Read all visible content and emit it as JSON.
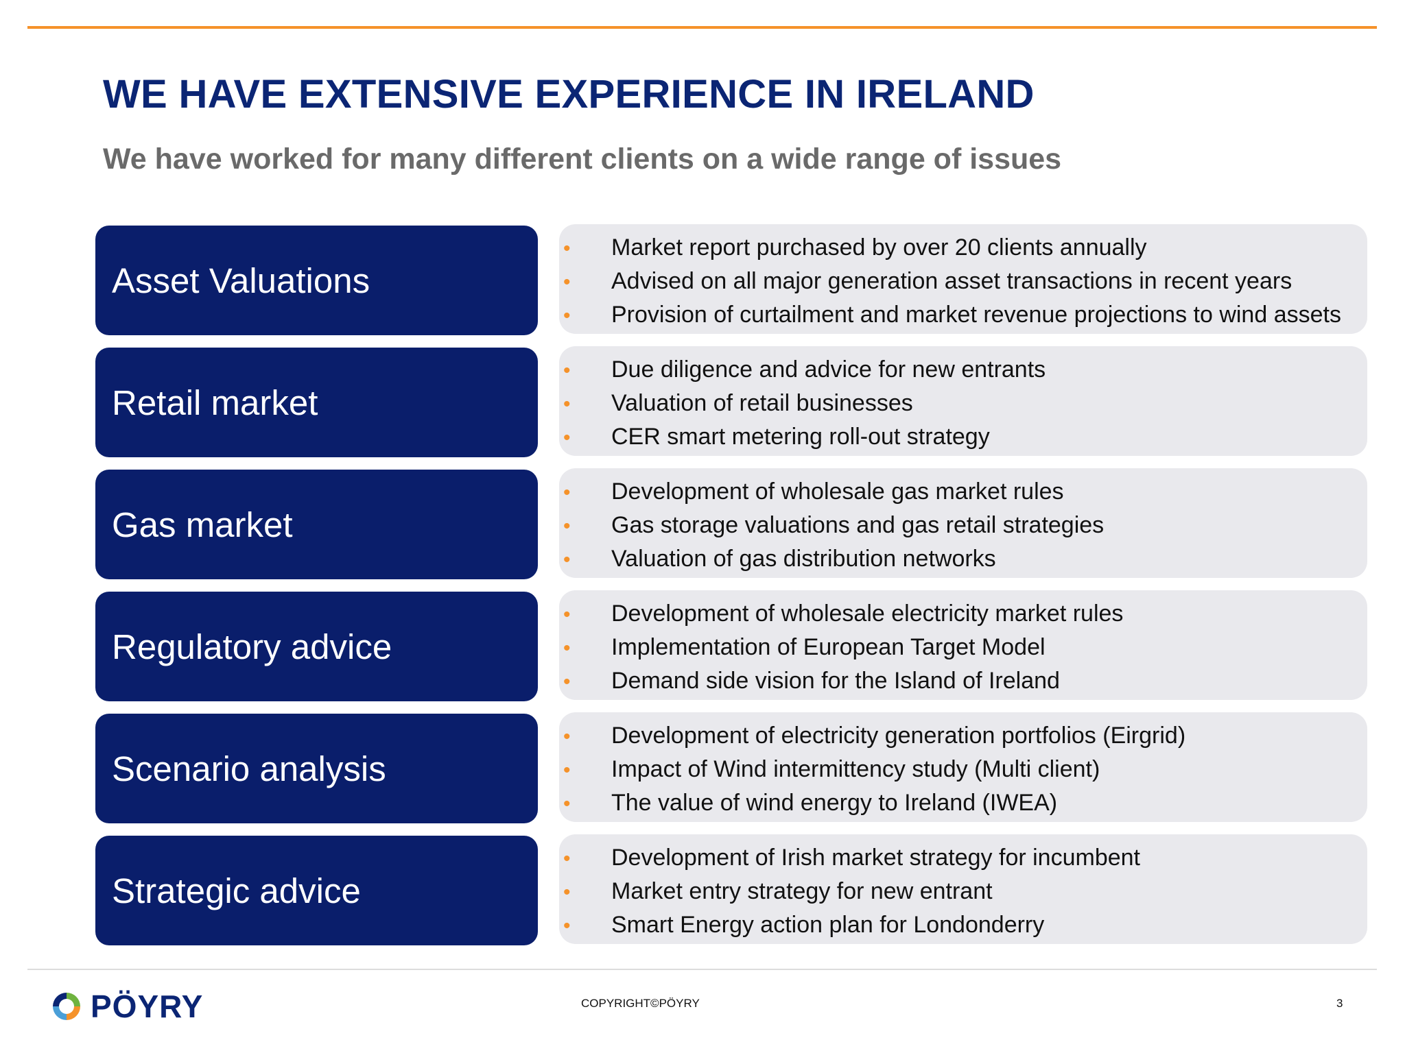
{
  "header": {
    "title": "WE HAVE EXTENSIVE EXPERIENCE IN IRELAND",
    "subtitle": "We have worked for many different clients on a wide range of issues"
  },
  "rows": [
    {
      "category": "Asset Valuations",
      "bullets": [
        "Market report purchased by over 20 clients annually",
        "Advised on all major generation asset transactions in recent years",
        "Provision of curtailment and market revenue projections to wind assets"
      ]
    },
    {
      "category": "Retail market",
      "bullets": [
        "Due diligence and advice for new entrants",
        "Valuation of retail businesses",
        "CER smart metering roll-out strategy"
      ]
    },
    {
      "category": "Gas market",
      "bullets": [
        "Development of wholesale gas market rules",
        "Gas storage valuations and gas retail strategies",
        "Valuation of gas distribution networks"
      ]
    },
    {
      "category": "Regulatory advice",
      "bullets": [
        "Development of wholesale electricity market rules",
        "Implementation of European Target Model",
        "Demand side vision for the Island of Ireland"
      ]
    },
    {
      "category": "Scenario analysis",
      "bullets": [
        "Development of electricity generation portfolios (Eirgrid)",
        "Impact of Wind intermittency study (Multi client)",
        "The value of wind energy to Ireland (IWEA)"
      ]
    },
    {
      "category": "Strategic advice",
      "bullets": [
        "Development of Irish market strategy for incumbent",
        "Market entry strategy for new entrant",
        "Smart Energy action plan for Londonderry"
      ]
    }
  ],
  "bullet_glyph": "•",
  "footer": {
    "logo_text": "PÖYRY",
    "copyright": "COPYRIGHT©PÖYRY",
    "page_number": "3"
  },
  "colors": {
    "accent_orange": "#f5922a",
    "navy": "#0a1e6b",
    "title_navy": "#0b2574",
    "panel_gray": "#e9e9ed"
  }
}
